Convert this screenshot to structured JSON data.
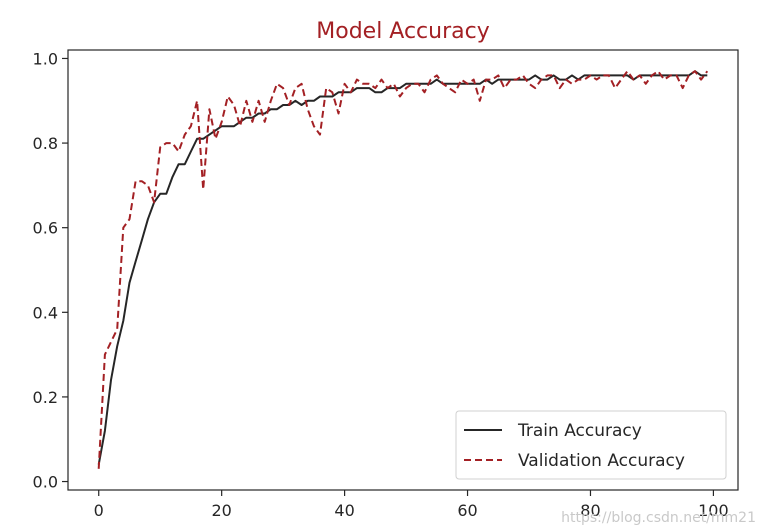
{
  "chart_data": {
    "type": "line",
    "title": "Model Accuracy",
    "xlabel": "",
    "ylabel": "",
    "xlim": [
      -5,
      104
    ],
    "ylim": [
      -0.02,
      1.02
    ],
    "x_ticks": [
      "0",
      "20",
      "40",
      "60",
      "80",
      "100"
    ],
    "y_ticks": [
      "0.0",
      "0.2",
      "0.4",
      "0.6",
      "0.8",
      "1.0"
    ],
    "grid": false,
    "legend_position": "lower-right",
    "series": [
      {
        "name": "Train Accuracy",
        "color": "#262626",
        "style": "solid",
        "x": [
          0,
          1,
          2,
          3,
          4,
          5,
          6,
          7,
          8,
          9,
          10,
          11,
          12,
          13,
          14,
          15,
          16,
          17,
          18,
          19,
          20,
          21,
          22,
          23,
          24,
          25,
          26,
          27,
          28,
          29,
          30,
          31,
          32,
          33,
          34,
          35,
          36,
          37,
          38,
          39,
          40,
          41,
          42,
          43,
          44,
          45,
          46,
          47,
          48,
          49,
          50,
          51,
          52,
          53,
          54,
          55,
          56,
          57,
          58,
          59,
          60,
          61,
          62,
          63,
          64,
          65,
          66,
          67,
          68,
          69,
          70,
          71,
          72,
          73,
          74,
          75,
          76,
          77,
          78,
          79,
          80,
          81,
          82,
          83,
          84,
          85,
          86,
          87,
          88,
          89,
          90,
          91,
          92,
          93,
          94,
          95,
          96,
          97,
          98,
          99
        ],
        "values": [
          0.04,
          0.12,
          0.24,
          0.32,
          0.38,
          0.47,
          0.52,
          0.57,
          0.62,
          0.66,
          0.68,
          0.68,
          0.72,
          0.75,
          0.75,
          0.78,
          0.81,
          0.81,
          0.82,
          0.83,
          0.84,
          0.84,
          0.84,
          0.85,
          0.86,
          0.86,
          0.87,
          0.87,
          0.88,
          0.88,
          0.89,
          0.89,
          0.9,
          0.89,
          0.9,
          0.9,
          0.91,
          0.91,
          0.91,
          0.92,
          0.92,
          0.92,
          0.93,
          0.93,
          0.93,
          0.92,
          0.92,
          0.93,
          0.93,
          0.93,
          0.94,
          0.94,
          0.94,
          0.94,
          0.94,
          0.95,
          0.94,
          0.94,
          0.94,
          0.94,
          0.94,
          0.94,
          0.94,
          0.95,
          0.94,
          0.95,
          0.95,
          0.95,
          0.95,
          0.95,
          0.95,
          0.96,
          0.95,
          0.95,
          0.96,
          0.95,
          0.95,
          0.96,
          0.95,
          0.96,
          0.96,
          0.96,
          0.96,
          0.96,
          0.96,
          0.96,
          0.96,
          0.95,
          0.96,
          0.96,
          0.96,
          0.96,
          0.96,
          0.96,
          0.96,
          0.96,
          0.96,
          0.97,
          0.96,
          0.96
        ]
      },
      {
        "name": "Validation Accuracy",
        "color": "#a32024",
        "style": "dashed",
        "x": [
          0,
          1,
          2,
          3,
          4,
          5,
          6,
          7,
          8,
          9,
          10,
          11,
          12,
          13,
          14,
          15,
          16,
          17,
          18,
          19,
          20,
          21,
          22,
          23,
          24,
          25,
          26,
          27,
          28,
          29,
          30,
          31,
          32,
          33,
          34,
          35,
          36,
          37,
          38,
          39,
          40,
          41,
          42,
          43,
          44,
          45,
          46,
          47,
          48,
          49,
          50,
          51,
          52,
          53,
          54,
          55,
          56,
          57,
          58,
          59,
          60,
          61,
          62,
          63,
          64,
          65,
          66,
          67,
          68,
          69,
          70,
          71,
          72,
          73,
          74,
          75,
          76,
          77,
          78,
          79,
          80,
          81,
          82,
          83,
          84,
          85,
          86,
          87,
          88,
          89,
          90,
          91,
          92,
          93,
          94,
          95,
          96,
          97,
          98,
          99
        ],
        "values": [
          0.03,
          0.3,
          0.33,
          0.36,
          0.6,
          0.62,
          0.71,
          0.71,
          0.7,
          0.66,
          0.79,
          0.8,
          0.8,
          0.78,
          0.82,
          0.84,
          0.9,
          0.69,
          0.88,
          0.81,
          0.85,
          0.91,
          0.89,
          0.84,
          0.9,
          0.85,
          0.9,
          0.85,
          0.9,
          0.94,
          0.93,
          0.89,
          0.93,
          0.94,
          0.88,
          0.84,
          0.82,
          0.93,
          0.92,
          0.87,
          0.94,
          0.92,
          0.95,
          0.94,
          0.94,
          0.93,
          0.95,
          0.93,
          0.94,
          0.91,
          0.93,
          0.94,
          0.94,
          0.92,
          0.95,
          0.96,
          0.94,
          0.93,
          0.92,
          0.95,
          0.94,
          0.95,
          0.9,
          0.95,
          0.95,
          0.96,
          0.93,
          0.95,
          0.95,
          0.96,
          0.94,
          0.93,
          0.95,
          0.96,
          0.96,
          0.93,
          0.95,
          0.94,
          0.95,
          0.95,
          0.96,
          0.95,
          0.96,
          0.96,
          0.93,
          0.95,
          0.97,
          0.95,
          0.96,
          0.94,
          0.96,
          0.97,
          0.95,
          0.96,
          0.96,
          0.93,
          0.96,
          0.97,
          0.95,
          0.97
        ]
      }
    ]
  },
  "watermark": "https://blog.csdn.net/mm21"
}
